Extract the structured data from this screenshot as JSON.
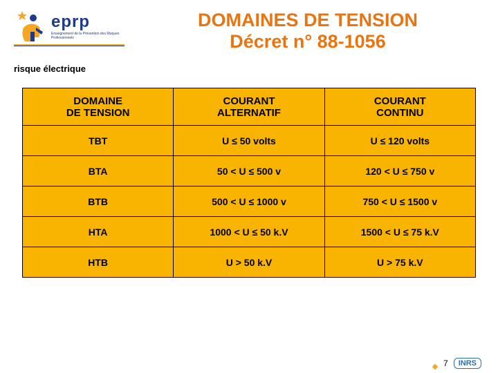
{
  "logo": {
    "text": "eprp",
    "subtext": "Enseignement de la Prévention des Risques Professionnels",
    "mark_colors": {
      "blue": "#1e3a8a",
      "orange": "#f5a623"
    }
  },
  "title": {
    "line1": "DOMAINES DE TENSION",
    "line2": "Décret n° 88-1056",
    "color": "#e87511",
    "fontsize": 27
  },
  "subtitle": "risque électrique",
  "table": {
    "background": "#f8b400",
    "border": "#000000",
    "columns": [
      "DOMAINE DE TENSION",
      "COURANT ALTERNATIF",
      "COURANT CONTINU"
    ],
    "rows": [
      [
        "TBT",
        "U ≤ 50 volts",
        "U ≤ 120 volts"
      ],
      [
        "BTA",
        "50 < U ≤ 500 v",
        "120 < U ≤ 750 v"
      ],
      [
        "BTB",
        "500 < U ≤ 1000 v",
        "750 < U ≤ 1500 v"
      ],
      [
        "HTA",
        "1000 < U ≤ 50 k.V",
        "1500 < U ≤ 75 k.V"
      ],
      [
        "HTB",
        "U > 50 k.V",
        "U > 75 k.V"
      ]
    ]
  },
  "footer": {
    "page": "7",
    "badge": "INRS"
  }
}
